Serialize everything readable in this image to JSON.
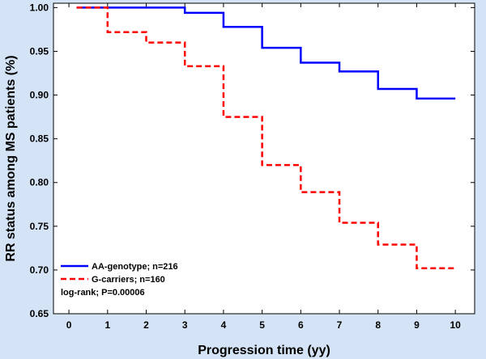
{
  "chart_data": {
    "type": "line",
    "step": true,
    "xlabel": "Progression time (yy)",
    "ylabel": "RR status among MS patients (%)",
    "xlim": [
      -0.4,
      10.5
    ],
    "ylim": [
      0.65,
      1.005
    ],
    "x_ticks": [
      0,
      1,
      2,
      3,
      4,
      5,
      6,
      7,
      8,
      9,
      10
    ],
    "y_ticks": [
      0.65,
      0.7,
      0.75,
      0.8,
      0.85,
      0.9,
      0.95,
      1.0
    ],
    "grid": false,
    "legend_position": "bottom-left",
    "series": [
      {
        "name": "AA-genotype; n=216",
        "color": "#0000ff",
        "dash": "solid",
        "points": [
          [
            0.2,
            1.0
          ],
          [
            1,
            1.0
          ],
          [
            2,
            1.0
          ],
          [
            3,
            0.994
          ],
          [
            4,
            0.978
          ],
          [
            5,
            0.954
          ],
          [
            6,
            0.937
          ],
          [
            7,
            0.927
          ],
          [
            8,
            0.907
          ],
          [
            9,
            0.896
          ],
          [
            10,
            0.896
          ]
        ]
      },
      {
        "name": "G-carriers; n=160",
        "color": "#ff0000",
        "dash": "dashed",
        "points": [
          [
            0.2,
            1.0
          ],
          [
            1,
            0.972
          ],
          [
            2,
            0.96
          ],
          [
            3,
            0.933
          ],
          [
            4,
            0.875
          ],
          [
            5,
            0.82
          ],
          [
            6,
            0.789
          ],
          [
            7,
            0.754
          ],
          [
            8,
            0.729
          ],
          [
            9,
            0.702
          ],
          [
            10,
            0.702
          ]
        ]
      }
    ],
    "annotation": "log-rank; P=0.00006"
  }
}
